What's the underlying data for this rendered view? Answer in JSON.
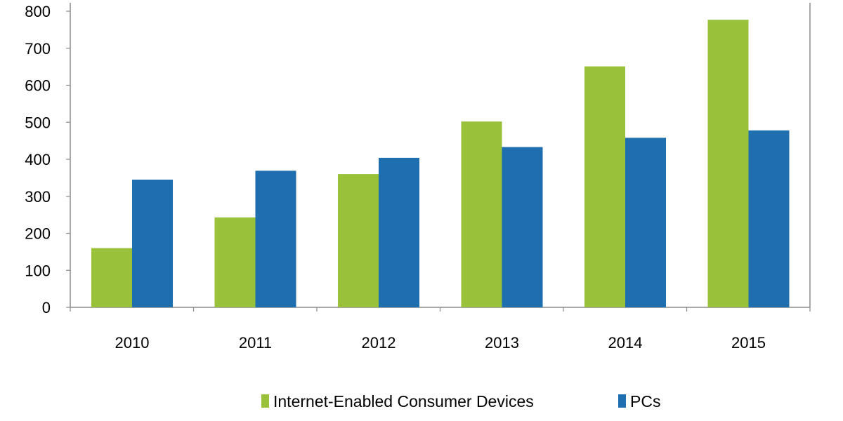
{
  "chart_data": {
    "type": "bar",
    "categories": [
      "2010",
      "2011",
      "2012",
      "2013",
      "2014",
      "2015"
    ],
    "series": [
      {
        "name": "Internet-Enabled Consumer Devices",
        "color": "#99c13a",
        "values": [
          160,
          243,
          360,
          502,
          651,
          777
        ]
      },
      {
        "name": "PCs",
        "color": "#1f6eaf",
        "values": [
          345,
          369,
          404,
          433,
          458,
          478
        ]
      }
    ],
    "ylim": [
      0,
      800
    ],
    "yticks": [
      "0",
      "100",
      "200",
      "300",
      "400",
      "500",
      "600",
      "700",
      "800"
    ],
    "grid": false,
    "legend_position": "bottom"
  }
}
